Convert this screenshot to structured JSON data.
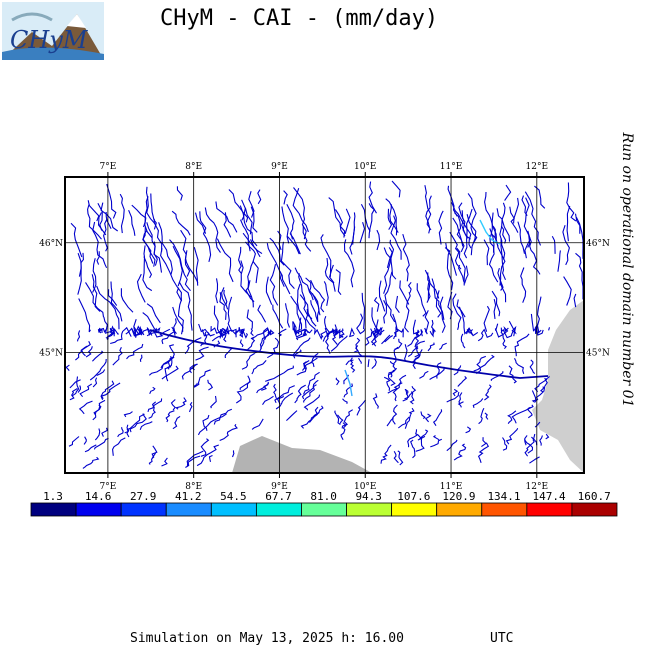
{
  "header": {
    "logo_text": "CHyM",
    "title": "CHyM - CAI - (mm/day)"
  },
  "side_note": "Run on operational domain number 01",
  "map": {
    "lon_labels": [
      "7°E",
      "8°E",
      "9°E",
      "10°E",
      "11°E",
      "12°E"
    ],
    "lat_labels": [
      "46°N",
      "45°N"
    ],
    "lon_range": [
      6.5,
      12.55
    ],
    "lat_range": [
      43.9,
      46.6
    ],
    "lons": [
      7,
      8,
      9,
      10,
      11,
      12
    ],
    "lats": [
      46,
      45
    ],
    "colors": {
      "river": "#0000cc",
      "land": "#b3b3b3",
      "sea_land": "#cfcfcf",
      "frame": "#000000",
      "grid": "#000000"
    }
  },
  "colorbar": {
    "labels": [
      "1.3",
      "14.6",
      "27.9",
      "41.2",
      "54.5",
      "67.7",
      "81.0",
      "94.3",
      "107.6",
      "120.9",
      "134.1",
      "147.4",
      "160.7"
    ],
    "colors": [
      "#00007f",
      "#0000ee",
      "#0033ff",
      "#1a8cff",
      "#00bfff",
      "#00eedd",
      "#66ff99",
      "#bbff33",
      "#ffff00",
      "#ffaa00",
      "#ff5500",
      "#ff0000",
      "#aa0000"
    ]
  },
  "footer": {
    "simulation": "Simulation on May 13, 2025 h: 16.00",
    "utc": "UTC"
  }
}
